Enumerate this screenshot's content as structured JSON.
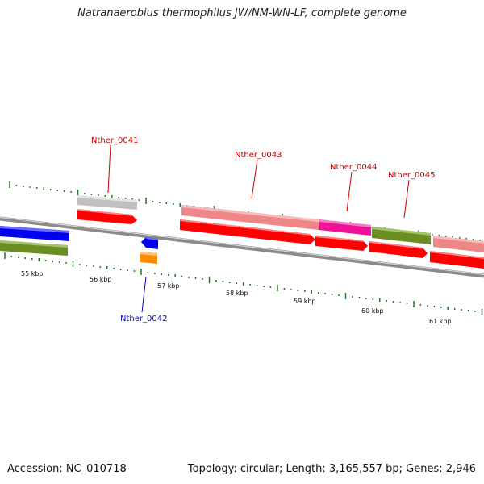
{
  "title": "Natranaerobius thermophilus JW/NM-WN-LF, complete genome",
  "footer": {
    "accession": "Accession: NC_010718",
    "stats": "Topology: circular; Length: 3,165,557 bp; Genes: 2,946"
  },
  "colors": {
    "backbone": "#8a8a8a",
    "tick": "#1f7a1f",
    "label_forward": "#cc0000",
    "label_reverse": "#0000cc",
    "red": "#ff0000",
    "pink": "#ee8888",
    "grey": "#c0c0c0",
    "blue": "#0000ee",
    "olive": "#6b8e23",
    "magenta": "#ee1199",
    "orange": "#ff8c00"
  },
  "scale_labels": [
    "55 kbp",
    "56 kbp",
    "57 kbp",
    "58 kbp",
    "59 kbp",
    "60 kbp",
    "61 kbp"
  ],
  "gene_labels": [
    "Nther_0041",
    "Nther_0042",
    "Nther_0043",
    "Nther_0044",
    "Nther_0045"
  ]
}
